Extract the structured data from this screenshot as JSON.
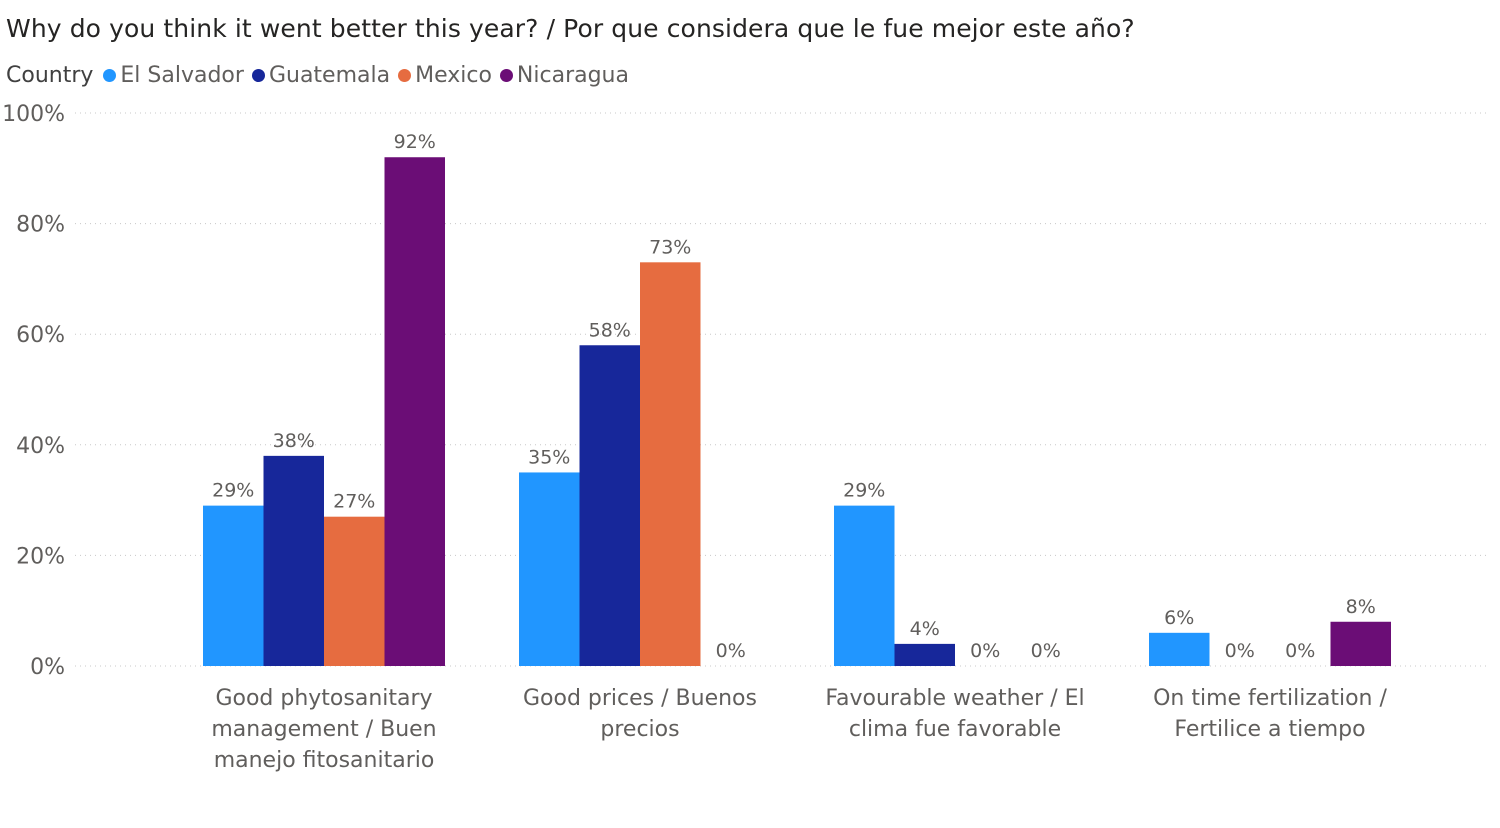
{
  "chart_data": {
    "type": "bar",
    "title": "Why do you think it went better this year? / Por que considera que le fue mejor este año?",
    "legend_title": "Country",
    "legend_position": "top-left",
    "categories": [
      [
        "Good phytosanitary",
        "management / Buen",
        "manejo fitosanitario"
      ],
      [
        "Good prices / Buenos",
        "precios"
      ],
      [
        "Favourable weather / El",
        "clima fue favorable"
      ],
      [
        "On time fertilization /",
        "Fertilice a tiempo"
      ]
    ],
    "series": [
      {
        "name": "El Salvador",
        "color": "#2196FF",
        "values": [
          29,
          35,
          29,
          6
        ]
      },
      {
        "name": "Guatemala",
        "color": "#17279A",
        "values": [
          38,
          58,
          4,
          0
        ]
      },
      {
        "name": "Mexico",
        "color": "#E66C40",
        "values": [
          27,
          73,
          0,
          0
        ]
      },
      {
        "name": "Nicaragua",
        "color": "#6B0D76",
        "values": [
          92,
          0,
          0,
          8
        ]
      }
    ],
    "value_format": "%",
    "ylim": [
      0,
      100
    ],
    "yticks": [
      "0%",
      "20%",
      "40%",
      "60%",
      "80%",
      "100%"
    ],
    "ytick_values": [
      0,
      20,
      40,
      60,
      80,
      100
    ],
    "grid": true
  }
}
